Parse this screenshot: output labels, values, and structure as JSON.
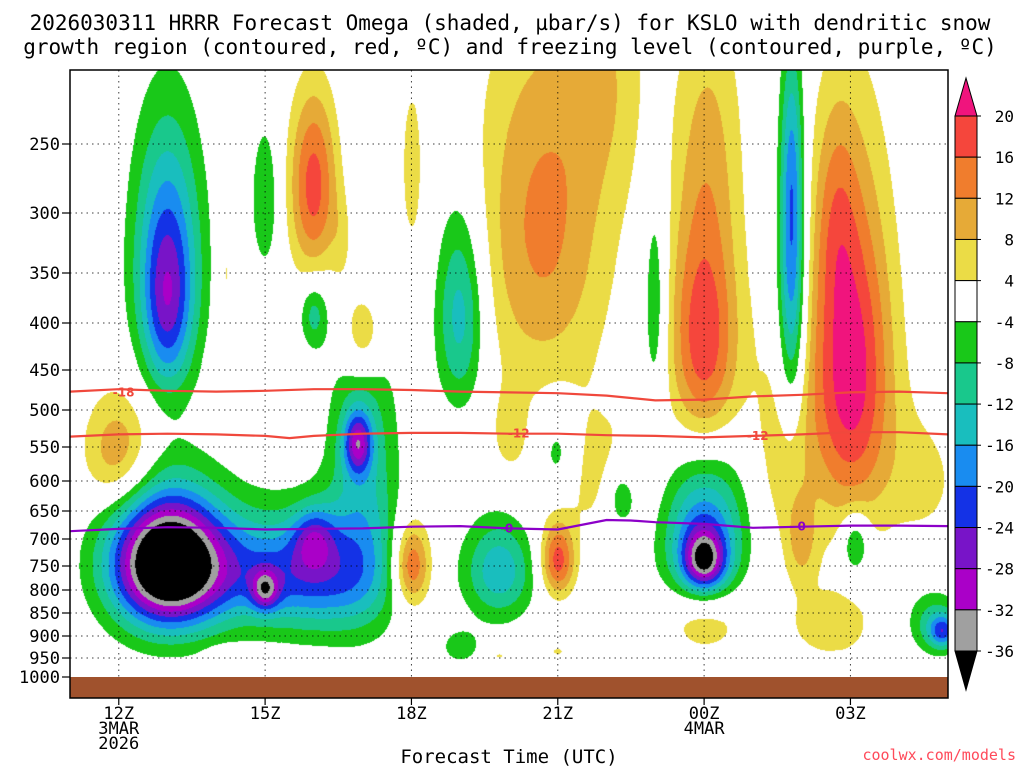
{
  "title": {
    "line1": "2026030311 HRRR Forecast Omega (shaded, µbar/s) for KSLO with dendritic snow",
    "line2": "growth region (contoured, red, ºC) and freezing level (contoured, purple, ºC)"
  },
  "credit": "coolwx.com/models",
  "colors": {
    "frame": "#000000",
    "ground": "#a0522d",
    "dgz_contour": "#f0483c",
    "freezing_contour": "#8c00c8"
  },
  "chart_data": {
    "type": "heatmap",
    "title": "2026030311 HRRR Forecast Omega (shaded, µbar/s) for KSLO",
    "xlabel": "Forecast Time (UTC)",
    "ylabel": "",
    "x_unit": "hours after 2026-03-03 11Z",
    "xlim": [
      11,
      29
    ],
    "ylim_hPa": [
      1025,
      200
    ],
    "x_ticks": [
      {
        "x": 12,
        "lines": [
          "12Z",
          "3MAR",
          "2026"
        ]
      },
      {
        "x": 15,
        "lines": [
          "15Z"
        ]
      },
      {
        "x": 18,
        "lines": [
          "18Z"
        ]
      },
      {
        "x": 21,
        "lines": [
          "21Z"
        ]
      },
      {
        "x": 24,
        "lines": [
          "00Z",
          "4MAR"
        ]
      },
      {
        "x": 27,
        "lines": [
          "03Z"
        ]
      }
    ],
    "y_ticks": [
      {
        "p": 250,
        "label": "250"
      },
      {
        "p": 300,
        "label": "300"
      },
      {
        "p": 350,
        "label": "350"
      },
      {
        "p": 400,
        "label": "400"
      },
      {
        "p": 450,
        "label": "450"
      },
      {
        "p": 500,
        "label": "500"
      },
      {
        "p": 550,
        "label": "550"
      },
      {
        "p": 600,
        "label": "600"
      },
      {
        "p": 650,
        "label": "650"
      },
      {
        "p": 700,
        "label": "700"
      },
      {
        "p": 750,
        "label": "750"
      },
      {
        "p": 800,
        "label": "800"
      },
      {
        "p": 850,
        "label": "850"
      },
      {
        "p": 900,
        "label": "900"
      },
      {
        "p": 950,
        "label": "950"
      },
      {
        "p": 1000,
        "label": "1000"
      }
    ],
    "ground_from_hPa": 1000,
    "colorbar": {
      "unit": "µbar/s",
      "bins": [
        {
          "range": "20 and above",
          "color": "#f0147d"
        },
        {
          "range": "16 to 20",
          "color": "#f5463c"
        },
        {
          "range": "12 to 16",
          "color": "#f07d2d"
        },
        {
          "range": "8 to 12",
          "color": "#e6aa37"
        },
        {
          "range": "4 to 8",
          "color": "#ebdc46"
        },
        {
          "range": "-4 to 4",
          "color": "#ffffff"
        },
        {
          "range": "-8 to -4",
          "color": "#19c819"
        },
        {
          "range": "-12 to -8",
          "color": "#19c88c"
        },
        {
          "range": "-16 to -12",
          "color": "#19bebe"
        },
        {
          "range": "-20 to -16",
          "color": "#198cf0"
        },
        {
          "range": "-24 to -20",
          "color": "#1432e6"
        },
        {
          "range": "-28 to -24",
          "color": "#7814c8"
        },
        {
          "range": "-32 to -28",
          "color": "#aa00c8"
        },
        {
          "range": "-36 to -32",
          "color": "#a0a0a0"
        },
        {
          "range": "below -36",
          "color": "#000000"
        }
      ],
      "tick_labels": [
        "20",
        "16",
        "12",
        "8",
        "4",
        "-4",
        "-8",
        "-12",
        "-16",
        "-20",
        "-24",
        "-28",
        "-32",
        "-36"
      ]
    },
    "omega_features": [
      {
        "x": 13.0,
        "p": 335,
        "sx": 0.5,
        "sp": 80,
        "peak": -18
      },
      {
        "x": 13.0,
        "p": 390,
        "sx": 0.35,
        "sp": 60,
        "peak": -13
      },
      {
        "x": 15.0,
        "p": 290,
        "sx": 0.2,
        "sp": 40,
        "peak": -8
      },
      {
        "x": 16.0,
        "p": 280,
        "sx": 0.35,
        "sp": 50,
        "peak": 18
      },
      {
        "x": 16.0,
        "p": 390,
        "sx": 0.2,
        "sp": 25,
        "peak": -10
      },
      {
        "x": 17.0,
        "p": 410,
        "sx": 0.3,
        "sp": 35,
        "peak": 12
      },
      {
        "x": 16.6,
        "p": 325,
        "sx": 0.18,
        "sp": 30,
        "peak": 5
      },
      {
        "x": 14.2,
        "p": 350,
        "sx": 0.12,
        "sp": 40,
        "peak": 5
      },
      {
        "x": 18.0,
        "p": 270,
        "sx": 0.25,
        "sp": 70,
        "peak": 5
      },
      {
        "x": 19.0,
        "p": 390,
        "sx": 0.35,
        "sp": 70,
        "peak": -15
      },
      {
        "x": 20.7,
        "p": 310,
        "sx": 0.95,
        "sp": 110,
        "peak": 13
      },
      {
        "x": 22.0,
        "p": 200,
        "sx": 0.6,
        "sp": 60,
        "peak": 6
      },
      {
        "x": 12.0,
        "p": 560,
        "sx": 0.5,
        "sp": 60,
        "peak": 12
      },
      {
        "x": 13.0,
        "p": 745,
        "sx": 0.8,
        "sp": 90,
        "peak": -48
      },
      {
        "x": 15.2,
        "p": 760,
        "sx": 1.4,
        "sp": 80,
        "peak": -16
      },
      {
        "x": 14.2,
        "p": 945,
        "sx": 0.25,
        "sp": 15,
        "peak": 5
      },
      {
        "x": 17.0,
        "p": 600,
        "sx": 0.5,
        "sp": 160,
        "peak": -12
      },
      {
        "x": 16.9,
        "p": 545,
        "sx": 0.2,
        "sp": 30,
        "peak": -21
      },
      {
        "x": 16.0,
        "p": 700,
        "sx": 0.3,
        "sp": 40,
        "peak": -14
      },
      {
        "x": 15.0,
        "p": 800,
        "sx": 0.2,
        "sp": 30,
        "peak": -18
      },
      {
        "x": 16.2,
        "p": 785,
        "sx": 0.9,
        "sp": 80,
        "peak": -9
      },
      {
        "x": 18.0,
        "p": 750,
        "sx": 0.28,
        "sp": 60,
        "peak": 18
      },
      {
        "x": 19.8,
        "p": 760,
        "sx": 0.5,
        "sp": 70,
        "peak": -15
      },
      {
        "x": 19.8,
        "p": 945,
        "sx": 0.12,
        "sp": 8,
        "peak": 5
      },
      {
        "x": 19.0,
        "p": 925,
        "sx": 0.3,
        "sp": 30,
        "peak": -6
      },
      {
        "x": 21.0,
        "p": 740,
        "sx": 0.25,
        "sp": 50,
        "peak": 18
      },
      {
        "x": 20.0,
        "p": 530,
        "sx": 0.25,
        "sp": 40,
        "peak": 5
      },
      {
        "x": 21.8,
        "p": 590,
        "sx": 0.9,
        "sp": 70,
        "peak": 6
      },
      {
        "x": 21.0,
        "p": 560,
        "sx": 0.3,
        "sp": 50,
        "peak": -9
      },
      {
        "x": 22.3,
        "p": 625,
        "sx": 0.25,
        "sp": 40,
        "peak": -10
      },
      {
        "x": 21.0,
        "p": 935,
        "sx": 0.12,
        "sp": 8,
        "peak": 5
      },
      {
        "x": 23.0,
        "p": 380,
        "sx": 0.18,
        "sp": 80,
        "peak": -9
      },
      {
        "x": 24.0,
        "p": 420,
        "sx": 0.5,
        "sp": 100,
        "peak": 20
      },
      {
        "x": 24.1,
        "p": 230,
        "sx": 0.5,
        "sp": 70,
        "peak": 6
      },
      {
        "x": 24.0,
        "p": 690,
        "sx": 0.6,
        "sp": 110,
        "peak": -20
      },
      {
        "x": 24.0,
        "p": 740,
        "sx": 0.3,
        "sp": 40,
        "peak": -24
      },
      {
        "x": 24.0,
        "p": 860,
        "sx": 0.6,
        "sp": 60,
        "peak": 10
      },
      {
        "x": 25.8,
        "p": 360,
        "sx": 0.2,
        "sp": 100,
        "peak": -20
      },
      {
        "x": 25.8,
        "p": 260,
        "sx": 0.15,
        "sp": 60,
        "peak": -8
      },
      {
        "x": 25.6,
        "p": 560,
        "sx": 0.5,
        "sp": 130,
        "peak": 6
      },
      {
        "x": 27.0,
        "p": 450,
        "sx": 0.6,
        "sp": 140,
        "peak": 23
      },
      {
        "x": 26.7,
        "p": 300,
        "sx": 0.3,
        "sp": 60,
        "peak": 6
      },
      {
        "x": 27.1,
        "p": 710,
        "sx": 0.2,
        "sp": 40,
        "peak": -12
      },
      {
        "x": 26.6,
        "p": 880,
        "sx": 0.9,
        "sp": 80,
        "peak": 5
      },
      {
        "x": 26.0,
        "p": 700,
        "sx": 0.2,
        "sp": 50,
        "peak": 8
      },
      {
        "x": 28.5,
        "p": 600,
        "sx": 0.6,
        "sp": 80,
        "peak": 5
      },
      {
        "x": 28.7,
        "p": 870,
        "sx": 0.4,
        "sp": 50,
        "peak": -10
      },
      {
        "x": 28.9,
        "p": 890,
        "sx": 0.2,
        "sp": 25,
        "peak": -16
      },
      {
        "x": 11.5,
        "p": 400,
        "sx": 0.12,
        "sp": 20,
        "peak": 3
      }
    ],
    "contours": [
      {
        "name": "dgz-minus18",
        "kind": "dendritic",
        "label": "-18",
        "label_at": [
          12.1,
          478
        ],
        "points": [
          [
            11.0,
            477
          ],
          [
            12.0,
            474
          ],
          [
            13.0,
            476
          ],
          [
            14.0,
            477
          ],
          [
            15.0,
            476
          ],
          [
            16.0,
            474
          ],
          [
            17.0,
            474
          ],
          [
            18.0,
            475
          ],
          [
            19.0,
            477
          ],
          [
            20.0,
            478
          ],
          [
            21.0,
            479
          ],
          [
            22.0,
            482
          ],
          [
            23.0,
            488
          ],
          [
            24.0,
            487
          ],
          [
            25.0,
            483
          ],
          [
            26.0,
            481
          ],
          [
            27.0,
            478
          ],
          [
            28.0,
            477
          ],
          [
            29.0,
            479
          ]
        ]
      },
      {
        "name": "dgz-minus12",
        "kind": "dendritic",
        "label": "-12",
        "label_at": [
          20.2,
          532
        ],
        "points": [
          [
            11.0,
            536
          ],
          [
            12.0,
            533
          ],
          [
            13.0,
            532
          ],
          [
            14.0,
            533
          ],
          [
            15.0,
            535
          ],
          [
            15.5,
            538
          ],
          [
            16.0,
            535
          ],
          [
            17.0,
            532
          ],
          [
            18.0,
            531
          ],
          [
            19.0,
            531
          ],
          [
            20.0,
            532
          ],
          [
            21.0,
            532
          ],
          [
            22.0,
            534
          ],
          [
            23.0,
            535
          ],
          [
            24.0,
            537
          ],
          [
            25.0,
            535
          ],
          [
            26.0,
            533
          ],
          [
            27.0,
            530
          ],
          [
            28.0,
            530
          ],
          [
            29.0,
            533
          ]
        ]
      },
      {
        "name": "dgz-minus12-label-b",
        "kind": "dendritic",
        "label": "-12",
        "label_at": [
          25.1,
          535
        ],
        "points": []
      },
      {
        "name": "freezing-level-0",
        "kind": "freezing",
        "label": "0",
        "label_at": [
          20.0,
          681
        ],
        "points": [
          [
            11.0,
            686
          ],
          [
            12.0,
            682
          ],
          [
            13.0,
            679
          ],
          [
            14.0,
            680
          ],
          [
            15.0,
            683
          ],
          [
            16.0,
            682
          ],
          [
            17.0,
            681
          ],
          [
            18.0,
            678
          ],
          [
            19.0,
            677
          ],
          [
            20.0,
            681
          ],
          [
            21.0,
            683
          ],
          [
            22.0,
            666
          ],
          [
            22.5,
            667
          ],
          [
            23.0,
            670
          ],
          [
            24.0,
            673
          ],
          [
            25.0,
            680
          ],
          [
            26.0,
            678
          ],
          [
            27.0,
            676
          ],
          [
            28.0,
            676
          ],
          [
            29.0,
            677
          ]
        ]
      },
      {
        "name": "freezing-level-0-label-b",
        "kind": "freezing",
        "label": "0",
        "label_at": [
          26.0,
          678
        ],
        "points": []
      }
    ]
  }
}
